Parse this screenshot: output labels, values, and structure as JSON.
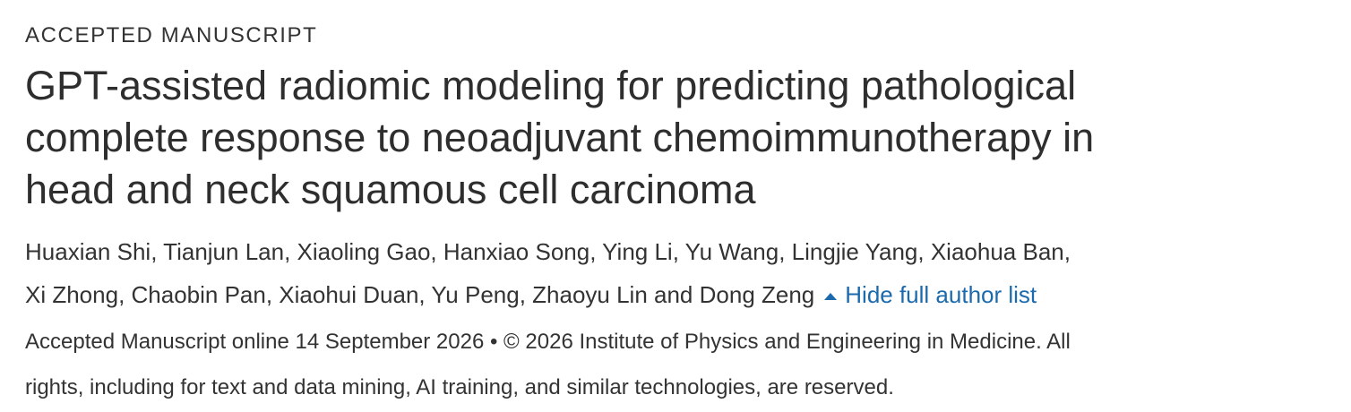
{
  "header": {
    "label": "ACCEPTED MANUSCRIPT",
    "title_lines": [
      "GPT-assisted radiomic modeling for predicting pathological",
      "complete response to neoadjuvant chemoimmunotherapy in",
      "head and neck squamous cell carcinoma"
    ]
  },
  "authors": {
    "lines": [
      "Huaxian Shi, Tianjun Lan, Xiaoling Gao, Hanxiao Song, Ying Li, Yu Wang, Lingjie Yang, Xiaohua Ban,",
      "Xi Zhong, Chaobin Pan, Xiaohui Duan, Yu Peng, Zhaoyu Lin and Dong Zeng"
    ],
    "toggle": "Hide full author list"
  },
  "publication": {
    "lines": [
      "Accepted Manuscript online 14 September 2026 • © 2026 Institute of Physics and Engineering in Medicine. All",
      "rights, including for text and data mining, AI training, and similar technologies, are reserved."
    ]
  }
}
